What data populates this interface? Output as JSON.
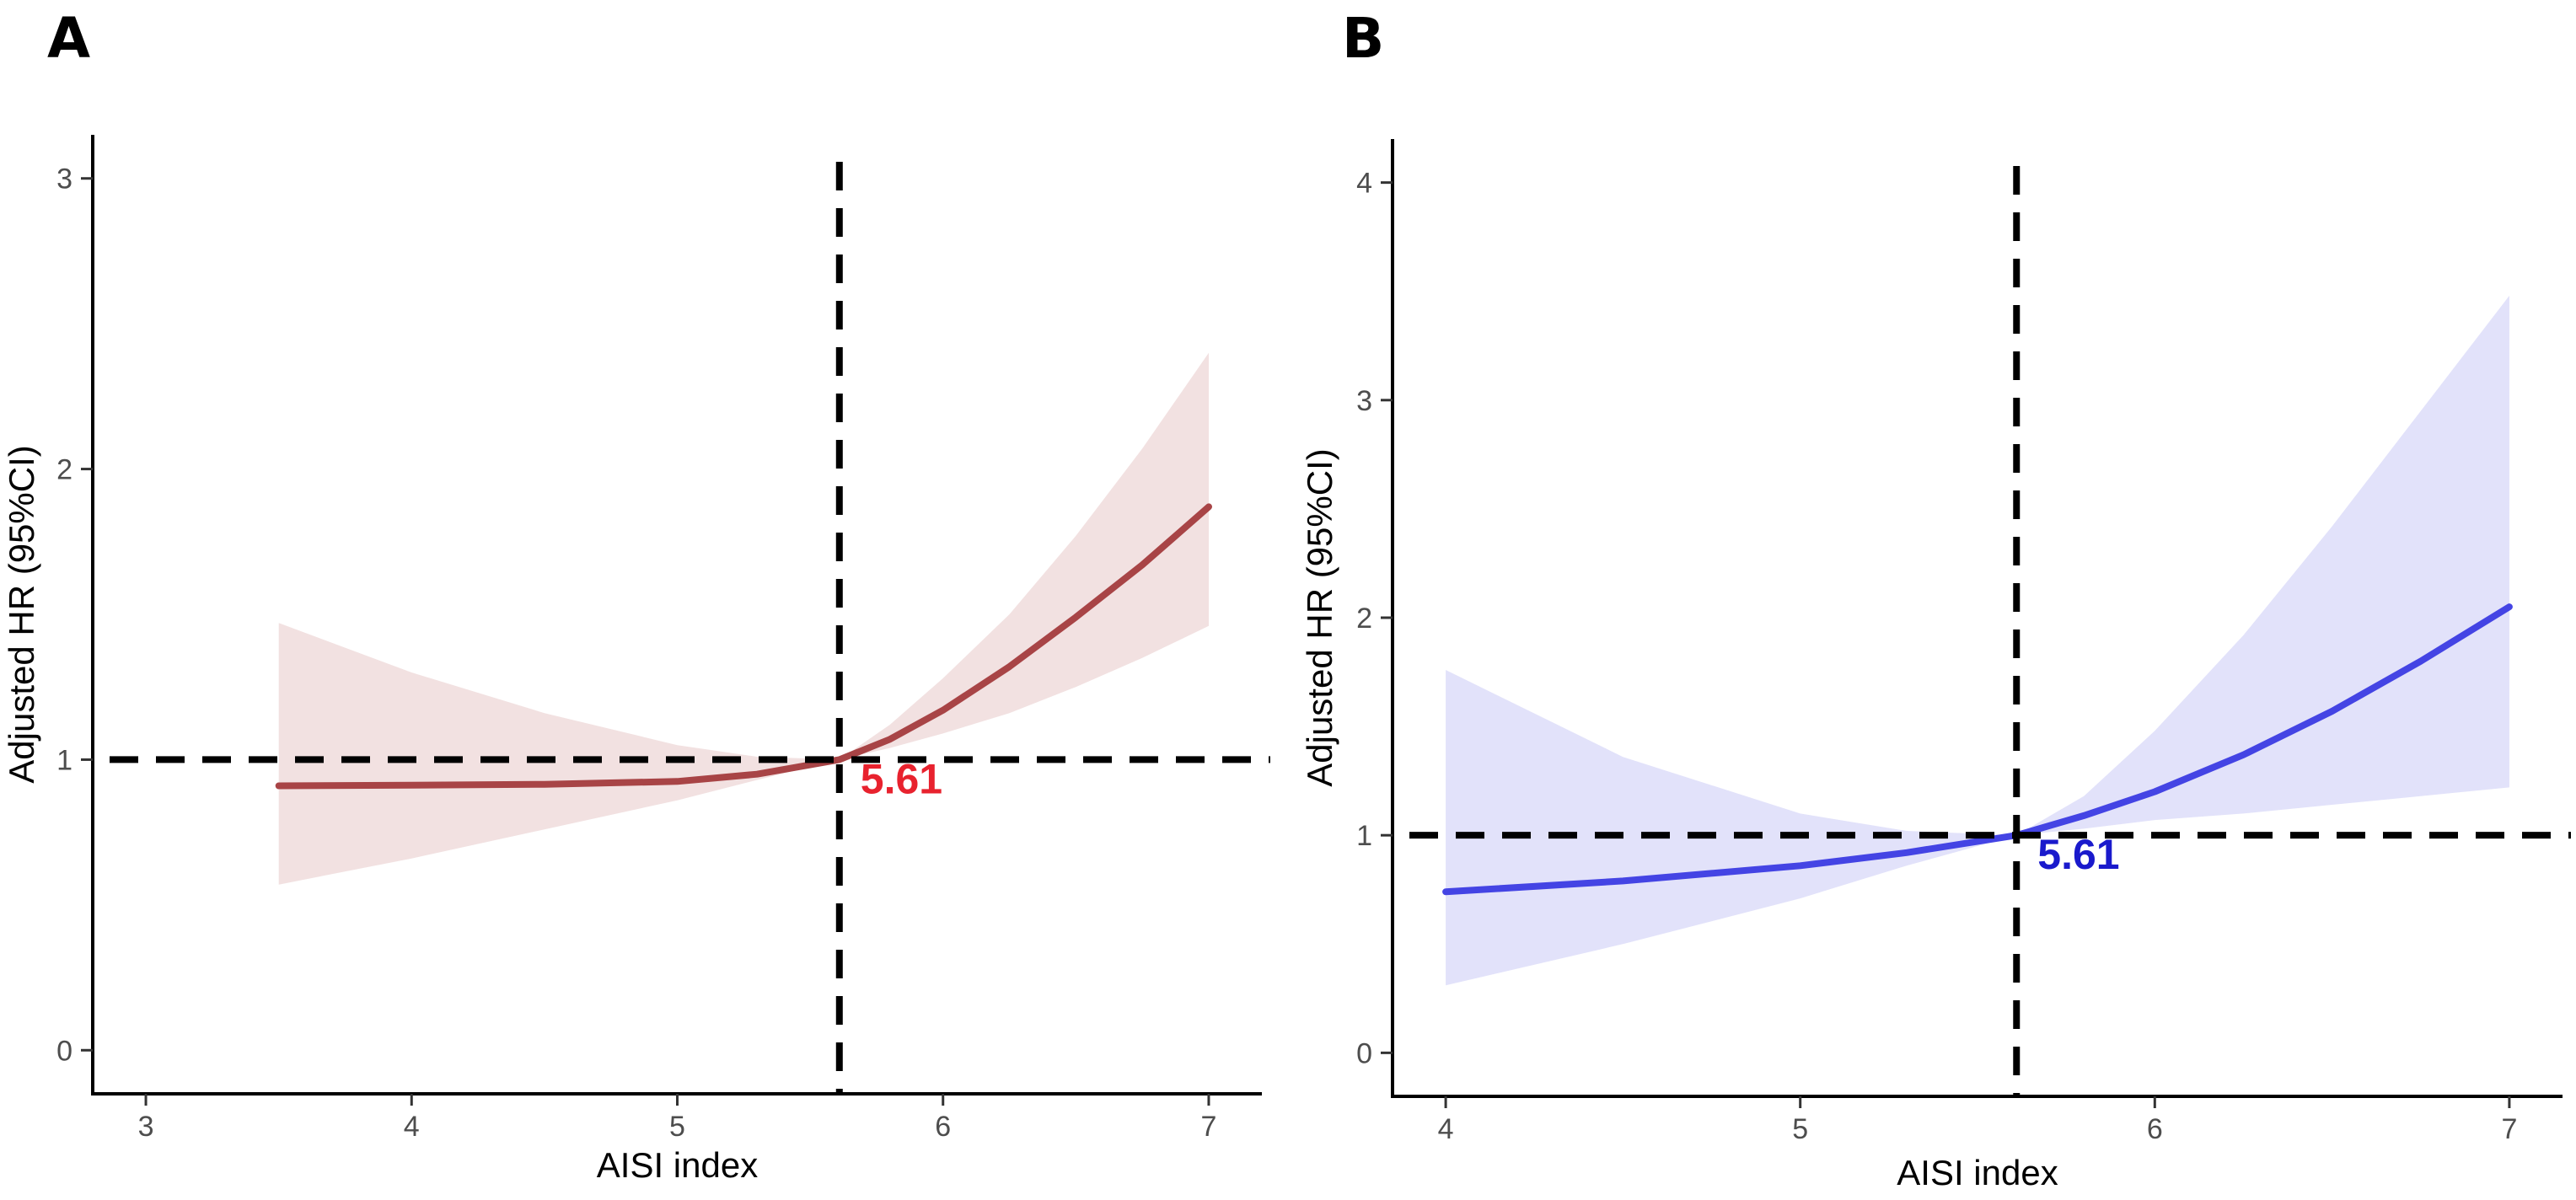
{
  "figure": {
    "panel_labels": [
      "A",
      "B"
    ]
  },
  "chart_data": [
    {
      "panel": "A",
      "type": "line",
      "title": "",
      "xlabel": "AISI index",
      "ylabel": "Adjusted HR (95%CI)",
      "xlim": [
        2.8,
        7.2
      ],
      "ylim": [
        -0.15,
        3.15
      ],
      "xticks": [
        3,
        4,
        5,
        6,
        7
      ],
      "yticks": [
        0,
        1,
        2,
        3
      ],
      "xtick_labels": [
        "3",
        "4",
        "5",
        "6",
        "7"
      ],
      "ytick_labels": [
        "0",
        "1",
        "2",
        "3"
      ],
      "grid": false,
      "reference_x": 5.61,
      "reference_y": 1,
      "annotation": "5.61",
      "line_color": "#a84446",
      "band_color": "#f2e1e1",
      "annotation_color": "#e8222e",
      "series": [
        {
          "name": "HR",
          "x": [
            3.5,
            4.0,
            4.5,
            5.0,
            5.3,
            5.61,
            5.8,
            6.0,
            6.25,
            6.5,
            6.75,
            7.0
          ],
          "y": [
            0.91,
            0.912,
            0.915,
            0.925,
            0.95,
            1.0,
            1.07,
            1.17,
            1.32,
            1.49,
            1.67,
            1.87
          ]
        },
        {
          "name": "lower 95%CI",
          "x": [
            3.5,
            4.0,
            4.5,
            5.0,
            5.3,
            5.61,
            5.8,
            6.0,
            6.25,
            6.5,
            6.75,
            7.0
          ],
          "y": [
            0.57,
            0.66,
            0.76,
            0.86,
            0.93,
            1.0,
            1.04,
            1.09,
            1.16,
            1.25,
            1.35,
            1.46
          ]
        },
        {
          "name": "upper 95%CI",
          "x": [
            3.5,
            4.0,
            4.5,
            5.0,
            5.3,
            5.61,
            5.8,
            6.0,
            6.25,
            6.5,
            6.75,
            7.0
          ],
          "y": [
            1.47,
            1.3,
            1.16,
            1.05,
            1.01,
            1.0,
            1.12,
            1.28,
            1.5,
            1.77,
            2.07,
            2.4
          ]
        }
      ]
    },
    {
      "panel": "B",
      "type": "line",
      "title": "",
      "xlabel": "AISI index",
      "ylabel": "Adjusted HR (95%CI)",
      "xlim": [
        3.85,
        7.15
      ],
      "ylim": [
        -0.2,
        4.2
      ],
      "xticks": [
        4,
        5,
        6,
        7
      ],
      "yticks": [
        0,
        1,
        2,
        3,
        4
      ],
      "xtick_labels": [
        "4",
        "5",
        "6",
        "7"
      ],
      "ytick_labels": [
        "0",
        "1",
        "2",
        "3",
        "4"
      ],
      "grid": false,
      "reference_x": 5.61,
      "reference_y": 1,
      "annotation": "5.61",
      "line_color": "#4444e4",
      "band_color": "#e2e2fa",
      "annotation_color": "#1a1acc",
      "series": [
        {
          "name": "HR",
          "x": [
            4.0,
            4.5,
            5.0,
            5.3,
            5.61,
            5.8,
            6.0,
            6.25,
            6.5,
            6.75,
            7.0
          ],
          "y": [
            0.74,
            0.79,
            0.86,
            0.92,
            1.0,
            1.09,
            1.2,
            1.37,
            1.57,
            1.8,
            2.05
          ]
        },
        {
          "name": "lower 95%CI",
          "x": [
            4.0,
            4.5,
            5.0,
            5.3,
            5.61,
            5.8,
            6.0,
            6.25,
            6.5,
            6.75,
            7.0
          ],
          "y": [
            0.31,
            0.5,
            0.71,
            0.86,
            1.0,
            1.03,
            1.07,
            1.1,
            1.14,
            1.18,
            1.22
          ]
        },
        {
          "name": "upper 95%CI",
          "x": [
            4.0,
            4.5,
            5.0,
            5.3,
            5.61,
            5.8,
            6.0,
            6.25,
            6.5,
            6.75,
            7.0
          ],
          "y": [
            1.76,
            1.36,
            1.1,
            1.02,
            1.0,
            1.18,
            1.48,
            1.92,
            2.42,
            2.95,
            3.48
          ]
        }
      ]
    }
  ]
}
